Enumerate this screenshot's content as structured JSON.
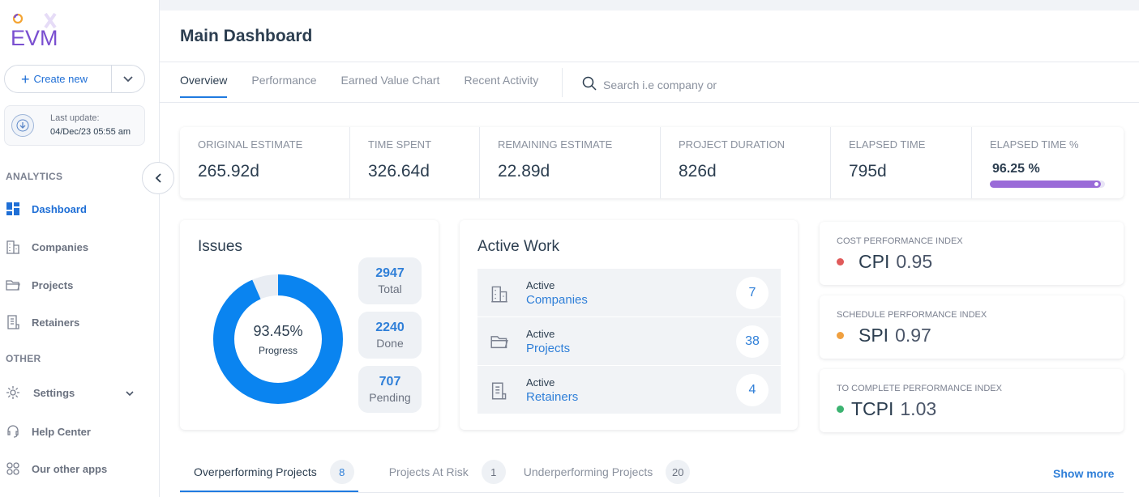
{
  "logo": {
    "text": "EVM"
  },
  "sidebar": {
    "create_label": "Create new",
    "update_label": "Last update:",
    "update_value": "04/Dec/23 05:55 am",
    "analytics_label": "ANALYTICS",
    "other_label": "OTHER",
    "items": [
      {
        "label": "Dashboard",
        "icon": "dashboard-icon"
      },
      {
        "label": "Companies",
        "icon": "building-icon"
      },
      {
        "label": "Projects",
        "icon": "folder-icon"
      },
      {
        "label": "Retainers",
        "icon": "document-icon"
      }
    ],
    "other_items": [
      {
        "label": "Settings",
        "icon": "gear-icon"
      },
      {
        "label": "Help Center",
        "icon": "headset-icon"
      },
      {
        "label": "Our other apps",
        "icon": "apps-grid-icon"
      }
    ]
  },
  "header": {
    "title": "Main Dashboard",
    "tabs": [
      "Overview",
      "Performance",
      "Earned Value Chart",
      "Recent Activity"
    ],
    "search_placeholder": "Search i.e company or"
  },
  "metrics": [
    {
      "label": "ORIGINAL ESTIMATE",
      "value": "265.92d"
    },
    {
      "label": "TIME SPENT",
      "value": "326.64d"
    },
    {
      "label": "REMAINING ESTIMATE",
      "value": "22.89d"
    },
    {
      "label": "PROJECT DURATION",
      "value": "826d"
    },
    {
      "label": "ELAPSED TIME",
      "value": "795d"
    },
    {
      "label": "ELAPSED TIME %",
      "value": "96.25 %",
      "progress": 0.9625
    }
  ],
  "issues": {
    "title": "Issues",
    "progress_text": "93.45%",
    "progress_label": "Progress",
    "progress_fraction": 0.9345,
    "stats": [
      {
        "value": "2947",
        "label": "Total"
      },
      {
        "value": "2240",
        "label": "Done"
      },
      {
        "value": "707",
        "label": "Pending"
      }
    ]
  },
  "active_work": {
    "title": "Active Work",
    "rows": [
      {
        "prefix": "Active",
        "label": "Companies",
        "count": "7",
        "icon": "building-icon"
      },
      {
        "prefix": "Active",
        "label": "Projects",
        "count": "38",
        "icon": "folder-icon"
      },
      {
        "prefix": "Active",
        "label": "Retainers",
        "count": "4",
        "icon": "document-icon"
      }
    ]
  },
  "indices": [
    {
      "label": "COST PERFORMANCE INDEX",
      "name": "CPI",
      "value": "0.95",
      "color": "#e05a5a"
    },
    {
      "label": "SCHEDULE PERFORMANCE INDEX",
      "name": "SPI",
      "value": "0.97",
      "color": "#f0a040"
    },
    {
      "label": "TO COMPLETE PERFORMANCE INDEX",
      "name": "TCPI",
      "value": "1.03",
      "color": "#3cb371"
    }
  ],
  "bottom_tabs": [
    {
      "label": "Overperforming Projects",
      "count": "8"
    },
    {
      "label": "Projects At Risk",
      "count": "1"
    },
    {
      "label": "Underperforming Projects",
      "count": "20"
    }
  ],
  "show_more": "Show more",
  "colors": {
    "accent": "#1f7ae0",
    "donut": "#0a84f0",
    "elapsed_bar": "#9a6bd8"
  }
}
